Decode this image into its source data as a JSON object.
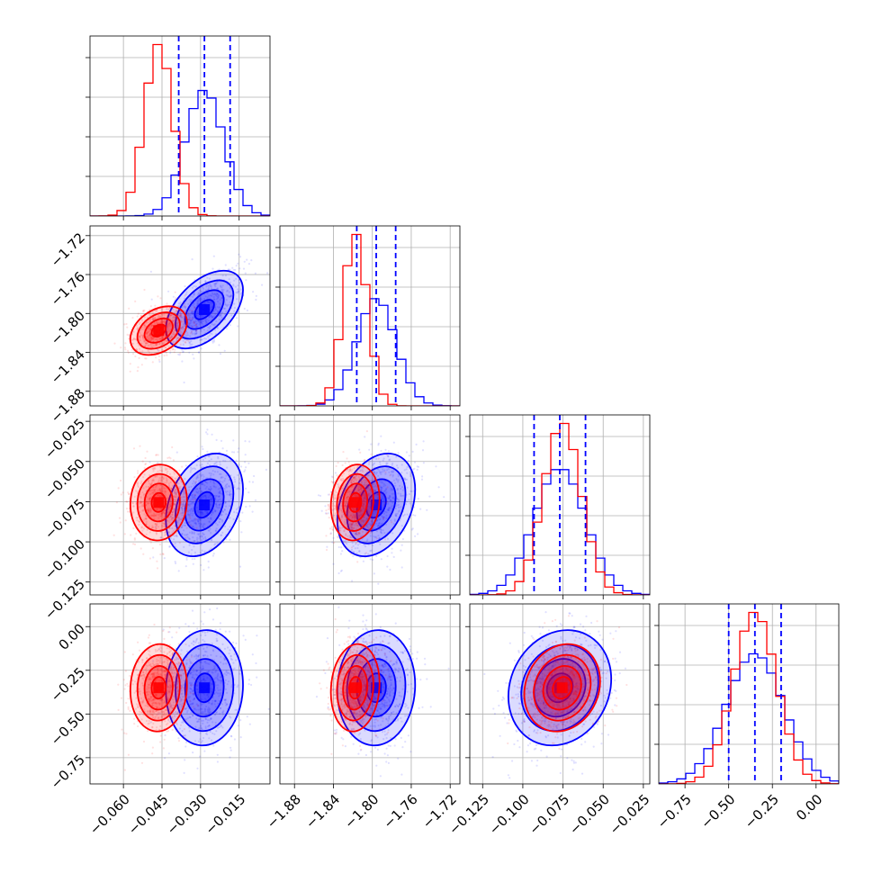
{
  "chart_data": {
    "type": "corner",
    "title": "",
    "grid": true,
    "legend": "none",
    "parameters": [
      {
        "range": [
          -0.073,
          -0.003
        ],
        "ticks": [
          -0.06,
          -0.045,
          -0.03,
          -0.015
        ],
        "tick_labels": [
          "−0.060",
          "−0.045",
          "−0.030",
          "−0.015"
        ]
      },
      {
        "range": [
          -1.895,
          -1.71
        ],
        "ticks": [
          -1.88,
          -1.84,
          -1.8,
          -1.76,
          -1.72
        ],
        "tick_labels": [
          "−1.88",
          "−1.84",
          "−1.80",
          "−1.76",
          "−1.72"
        ]
      },
      {
        "range": [
          -0.133,
          -0.021
        ],
        "ticks": [
          -0.125,
          -0.1,
          -0.075,
          -0.05,
          -0.025
        ],
        "tick_labels": [
          "−0.125",
          "−0.100",
          "−0.075",
          "−0.050",
          "−0.025"
        ]
      },
      {
        "range": [
          -0.9,
          0.13
        ],
        "ticks": [
          -0.75,
          -0.5,
          -0.25,
          0.0
        ],
        "tick_labels": [
          "−0.75",
          "−0.50",
          "−0.25",
          "0.00"
        ]
      }
    ],
    "series": [
      {
        "name": "",
        "color": "#ff0000",
        "mean": [
          -0.0463,
          -1.8176,
          -0.0755,
          -0.35
        ],
        "std": [
          0.0055,
          0.0125,
          0.0118,
          0.125
        ],
        "corr": [
          [
            1,
            0.35,
            0.05,
            0.05
          ],
          [
            0.35,
            1,
            0.1,
            0.1
          ],
          [
            0.05,
            0.1,
            1,
            0.15
          ],
          [
            0.05,
            0.1,
            0.15,
            1
          ]
        ]
      },
      {
        "name": "",
        "color": "#0000ff",
        "mean": [
          -0.0285,
          -1.796,
          -0.077,
          -0.35
        ],
        "std": [
          0.0075,
          0.02,
          0.016,
          0.165
        ],
        "corr": [
          [
            1,
            0.5,
            0.3,
            0.05
          ],
          [
            0.5,
            1,
            0.3,
            0.05
          ],
          [
            0.3,
            0.3,
            1,
            0.15
          ],
          [
            0.05,
            0.05,
            0.15,
            1
          ]
        ]
      }
    ],
    "quantiles": {
      "color": "#0000ff",
      "lines": [
        [
          -0.0385,
          -0.0285,
          -0.0185
        ],
        [
          -1.816,
          -1.796,
          -1.776
        ],
        [
          -0.093,
          -0.077,
          -0.061
        ],
        [
          -0.5,
          -0.35,
          -0.2
        ]
      ]
    },
    "histogram_bins": 20,
    "contour_levels_sigma": [
      0.5,
      1.0,
      1.5,
      2.0
    ]
  }
}
